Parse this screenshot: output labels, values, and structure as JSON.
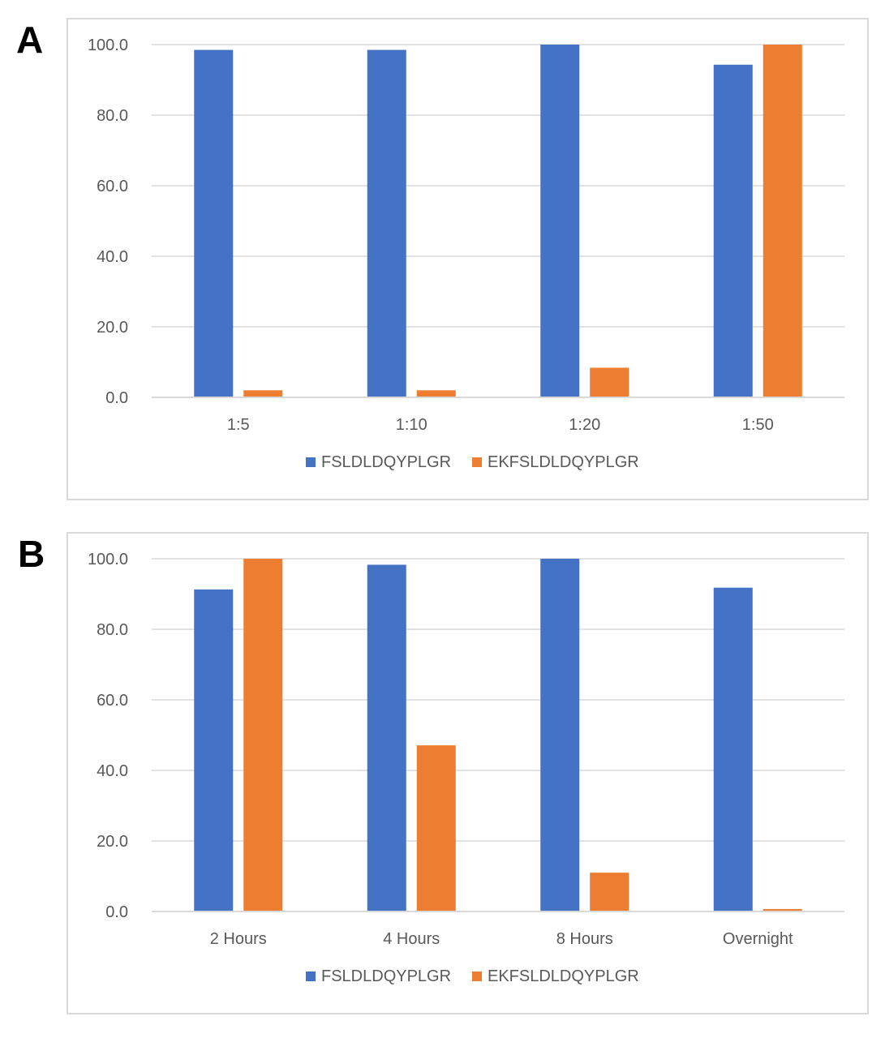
{
  "panels": [
    {
      "letter": "A"
    },
    {
      "letter": "B"
    }
  ],
  "colors": {
    "series1": "#4472c4",
    "series2": "#ed7d31",
    "grid": "#d9d9d9",
    "axis": "#595959"
  },
  "chart_data": [
    {
      "type": "bar",
      "title": "",
      "xlabel": "",
      "ylabel": "",
      "categories": [
        "1:5",
        "1:10",
        "1:20",
        "1:50"
      ],
      "series": [
        {
          "name": "FSLDLDQYPLGR",
          "values": [
            98.5,
            98.5,
            100.0,
            94.3
          ]
        },
        {
          "name": "EKFSLDLDQYPLGR",
          "values": [
            2.0,
            2.0,
            8.4,
            100.0
          ]
        }
      ],
      "ylim": [
        0,
        100
      ],
      "yticks": [
        "0.0",
        "20.0",
        "40.0",
        "60.0",
        "80.0",
        "100.0"
      ],
      "grid": true,
      "legend": "bottom"
    },
    {
      "type": "bar",
      "title": "",
      "xlabel": "",
      "ylabel": "",
      "categories": [
        "2 Hours",
        "4 Hours",
        "8 Hours",
        "Overnight"
      ],
      "series": [
        {
          "name": "FSLDLDQYPLGR",
          "values": [
            91.3,
            98.3,
            100.0,
            91.8
          ]
        },
        {
          "name": "EKFSLDLDQYPLGR",
          "values": [
            100.0,
            47.1,
            11.0,
            0.7
          ]
        }
      ],
      "ylim": [
        0,
        100
      ],
      "yticks": [
        "0.0",
        "20.0",
        "40.0",
        "60.0",
        "80.0",
        "100.0"
      ],
      "grid": true,
      "legend": "bottom"
    }
  ]
}
